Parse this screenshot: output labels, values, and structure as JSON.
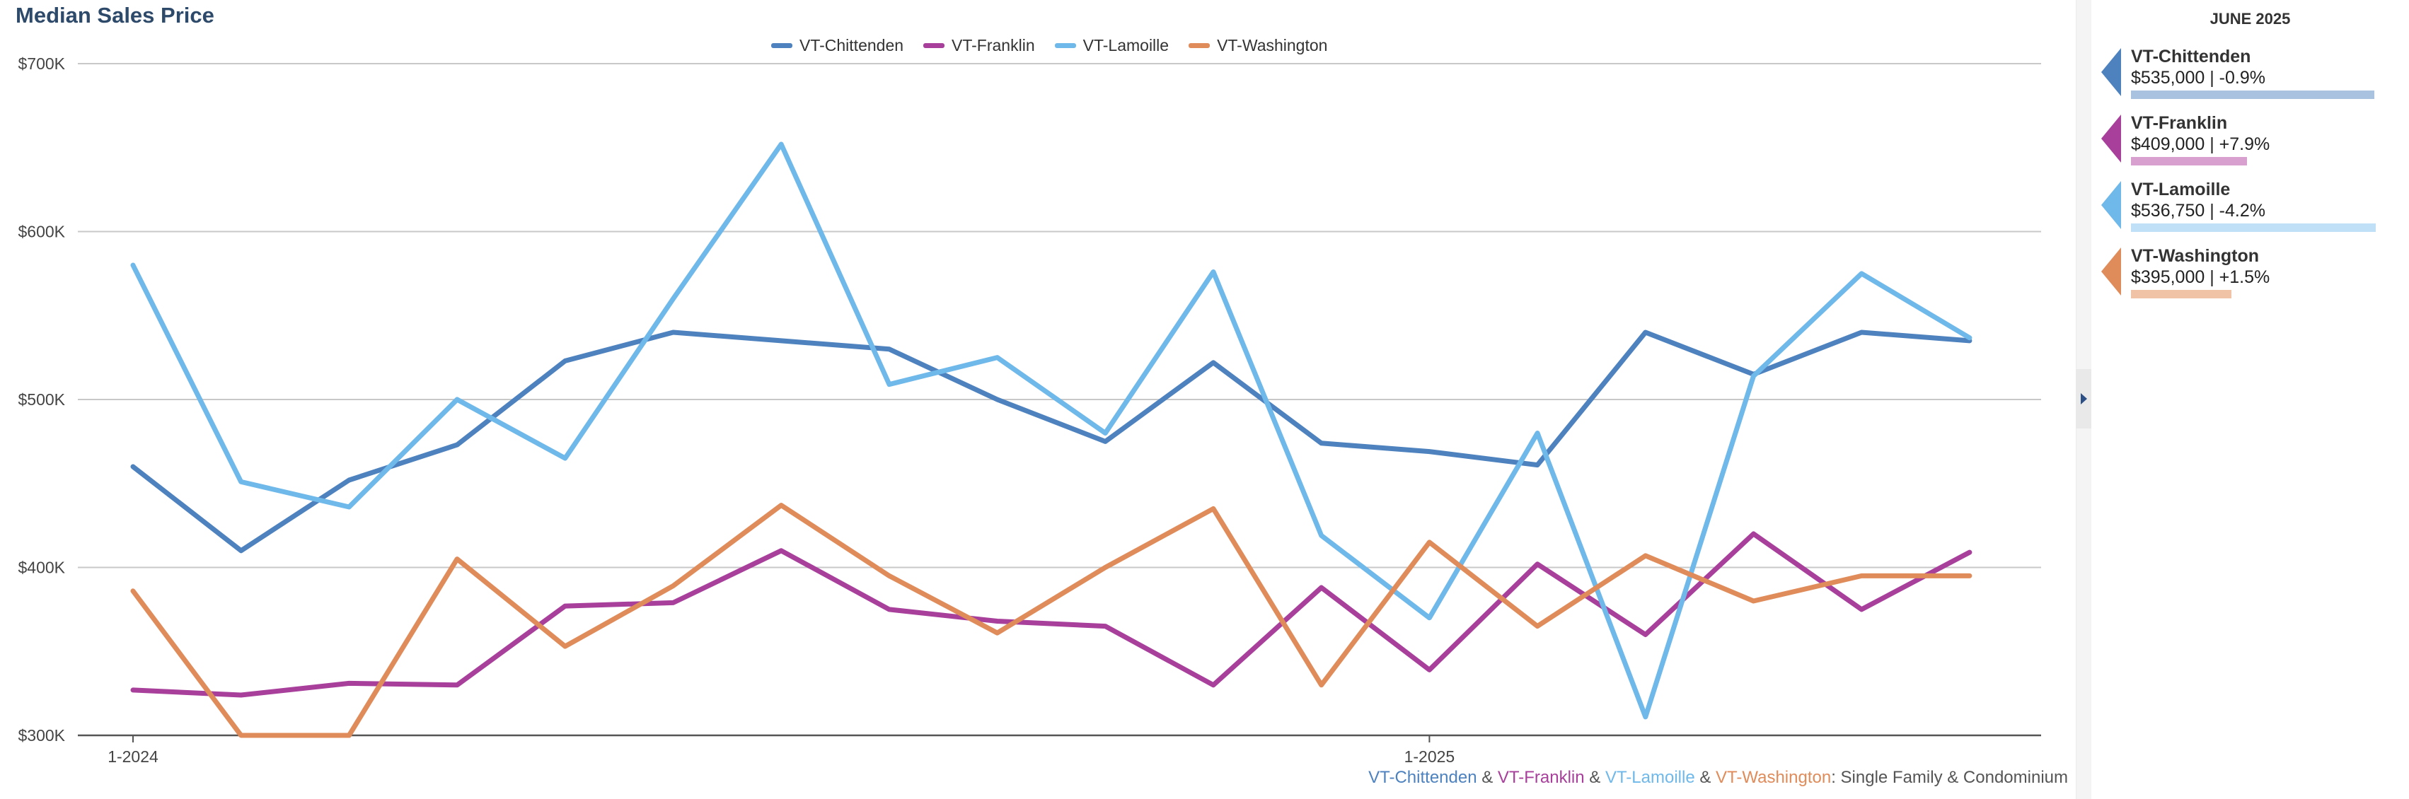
{
  "chart_data": {
    "type": "line",
    "title": "Median Sales Price",
    "x": [
      "1-2024",
      "2-2024",
      "3-2024",
      "4-2024",
      "5-2024",
      "6-2024",
      "7-2024",
      "8-2024",
      "9-2024",
      "10-2024",
      "11-2024",
      "12-2024",
      "1-2025",
      "2-2025",
      "3-2025",
      "4-2025",
      "5-2025",
      "6-2025"
    ],
    "x_tick_labels": [
      "1-2024",
      "1-2025"
    ],
    "ylim": [
      300000,
      700000
    ],
    "y_ticks": [
      300000,
      400000,
      500000,
      600000,
      700000
    ],
    "y_tick_labels": [
      "$300K",
      "$400K",
      "$500K",
      "$600K",
      "$700K"
    ],
    "grid": true,
    "legend_position": "top-center",
    "series": [
      {
        "name": "VT-Chittenden",
        "color": "#4d82bf",
        "values": [
          460000,
          410000,
          452000,
          473000,
          523000,
          540000,
          535000,
          530000,
          500000,
          475000,
          522000,
          474000,
          469000,
          461000,
          540000,
          515000,
          540000,
          535000
        ]
      },
      {
        "name": "VT-Franklin",
        "color": "#a73f9b",
        "values": [
          327000,
          324000,
          331000,
          330000,
          377000,
          379000,
          410000,
          375000,
          368000,
          365000,
          330000,
          388000,
          339000,
          402000,
          360000,
          420000,
          375000,
          409000
        ]
      },
      {
        "name": "VT-Lamoille",
        "color": "#6fb8ea",
        "values": [
          580000,
          451000,
          436000,
          500000,
          465000,
          560000,
          652000,
          509000,
          525000,
          480000,
          576000,
          419000,
          370000,
          480000,
          311000,
          514000,
          575000,
          536750
        ]
      },
      {
        "name": "VT-Washington",
        "color": "#e08c5a",
        "values": [
          386000,
          300000,
          300000,
          405000,
          353000,
          389000,
          437000,
          395000,
          361000,
          400000,
          435000,
          330000,
          415000,
          365000,
          407000,
          380000,
          395000,
          395000
        ]
      }
    ]
  },
  "caption": {
    "parts": [
      {
        "text": "VT-Chittenden",
        "color": "#4d82bf"
      },
      {
        "text": " & ",
        "color": "#555555"
      },
      {
        "text": "VT-Franklin",
        "color": "#a73f9b"
      },
      {
        "text": " & ",
        "color": "#555555"
      },
      {
        "text": "VT-Lamoille",
        "color": "#6fb8ea"
      },
      {
        "text": " & ",
        "color": "#555555"
      },
      {
        "text": "VT-Washington",
        "color": "#e08c5a"
      },
      {
        "text": ": Single Family & Condominium",
        "color": "#555555"
      }
    ]
  },
  "side_panel": {
    "header": "JUNE 2025",
    "items": [
      {
        "name": "VT-Chittenden",
        "value": "$535,000 | -0.9%",
        "color": "#4d82bf",
        "bar_color": "#a9c2e0",
        "bar_fraction": 0.993
      },
      {
        "name": "VT-Franklin",
        "value": "$409,000 | +7.9%",
        "color": "#a73f9b",
        "bar_color": "#d7a0cf",
        "bar_fraction": 0.475
      },
      {
        "name": "VT-Lamoille",
        "value": "$536,750 | -4.2%",
        "color": "#6fb8ea",
        "bar_color": "#bfe0f6",
        "bar_fraction": 1.0
      },
      {
        "name": "VT-Washington",
        "value": "$395,000 | +1.5%",
        "color": "#e08c5a",
        "bar_color": "#f1c3a6",
        "bar_fraction": 0.41
      }
    ]
  }
}
